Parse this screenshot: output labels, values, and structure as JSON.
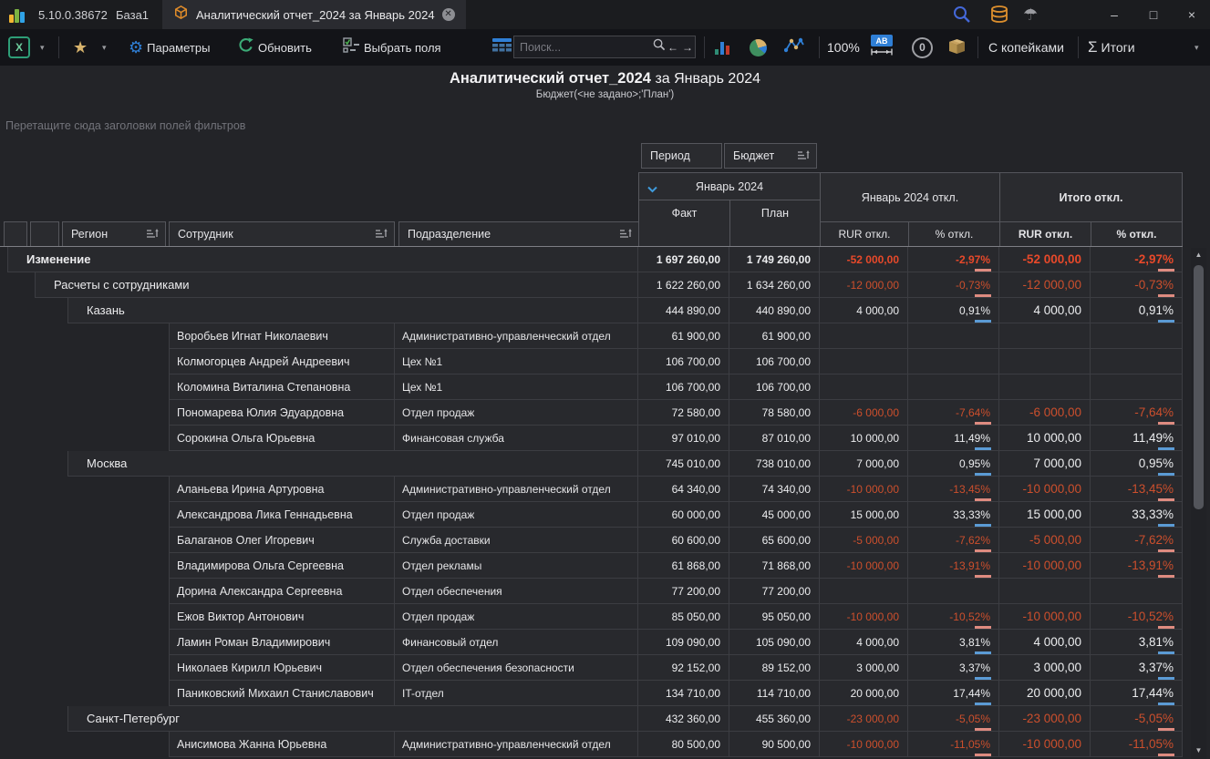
{
  "window": {
    "version": "5.10.0.38672",
    "base_name": "База1",
    "tab_title": "Аналитический отчет_2024 за Январь 2024",
    "minimize": "–",
    "maximize": "□",
    "close": "×"
  },
  "toolbar": {
    "excel_label": "X",
    "params_label": "Параметры",
    "refresh_label": "Обновить",
    "select_fields_label": "Выбрать поля",
    "search_placeholder": "Поиск...",
    "back_arrow": "←",
    "forward_arrow": "→",
    "zoom_level": "100%",
    "ab_label": "AB",
    "zero_label": "0",
    "kopecks_label": "С копейками",
    "sigma": "Σ",
    "totals_label": "Итоги"
  },
  "report": {
    "title": "Аналитический отчет_2024",
    "title_suffix": " за Январь 2024",
    "subtitle": "Бюджет(<не задано>;'План')"
  },
  "pivot": {
    "filter_hint": "Перетащите сюда заголовки полей фильтров",
    "column_fields": {
      "period": "Период",
      "budget": "Бюджет"
    },
    "col_groups": {
      "month": "Январь 2024",
      "month_dev": "Январь 2024 откл.",
      "total_dev": "Итого откл."
    },
    "sub_cols": {
      "fact": "Факт",
      "plan": "План",
      "rur_dev": "RUR откл.",
      "pct_dev": "% откл."
    },
    "row_fields": {
      "region": "Регион",
      "employee": "Сотрудник",
      "department": "Подразделение"
    },
    "rows": [
      {
        "kind": "group",
        "level": 0,
        "bold": true,
        "label": "Изменение",
        "variance": "neg",
        "values": [
          "1 697 260,00",
          "1 749 260,00",
          "-52 000,00",
          "-2,97%",
          "-52 000,00",
          "-2,97%"
        ]
      },
      {
        "kind": "group",
        "level": 1,
        "label": "Расчеты с сотрудниками",
        "variance": "neg",
        "values": [
          "1 622 260,00",
          "1 634 260,00",
          "-12 000,00",
          "-0,73%",
          "-12 000,00",
          "-0,73%"
        ]
      },
      {
        "kind": "group",
        "level": 2,
        "label": "Казань",
        "variance": "pos",
        "values": [
          "444 890,00",
          "440 890,00",
          "4 000,00",
          "0,91%",
          "4 000,00",
          "0,91%"
        ]
      },
      {
        "kind": "leaf",
        "employee": "Воробьев Игнат Николаевич",
        "dept": "Административно-управленческий отдел",
        "variance": "none",
        "values": [
          "61 900,00",
          "61 900,00",
          "",
          "",
          "",
          ""
        ]
      },
      {
        "kind": "leaf",
        "employee": "Колмогорцев Андрей Андреевич",
        "dept": "Цех №1",
        "variance": "none",
        "values": [
          "106 700,00",
          "106 700,00",
          "",
          "",
          "",
          ""
        ]
      },
      {
        "kind": "leaf",
        "employee": "Коломина Виталина Степановна",
        "dept": "Цех №1",
        "variance": "none",
        "values": [
          "106 700,00",
          "106 700,00",
          "",
          "",
          "",
          ""
        ]
      },
      {
        "kind": "leaf",
        "employee": "Пономарева Юлия Эдуардовна",
        "dept": "Отдел продаж",
        "variance": "neg",
        "values": [
          "72 580,00",
          "78 580,00",
          "-6 000,00",
          "-7,64%",
          "-6 000,00",
          "-7,64%"
        ]
      },
      {
        "kind": "leaf",
        "employee": "Сорокина Ольга Юрьевна",
        "dept": "Финансовая служба",
        "variance": "pos",
        "values": [
          "97 010,00",
          "87 010,00",
          "10 000,00",
          "11,49%",
          "10 000,00",
          "11,49%"
        ]
      },
      {
        "kind": "group",
        "level": 2,
        "label": "Москва",
        "variance": "pos",
        "values": [
          "745 010,00",
          "738 010,00",
          "7 000,00",
          "0,95%",
          "7 000,00",
          "0,95%"
        ]
      },
      {
        "kind": "leaf",
        "employee": "Аланьева Ирина Артуровна",
        "dept": "Административно-управленческий отдел",
        "variance": "neg",
        "values": [
          "64 340,00",
          "74 340,00",
          "-10 000,00",
          "-13,45%",
          "-10 000,00",
          "-13,45%"
        ]
      },
      {
        "kind": "leaf",
        "employee": "Александрова Лика Геннадьевна",
        "dept": "Отдел продаж",
        "variance": "pos",
        "values": [
          "60 000,00",
          "45 000,00",
          "15 000,00",
          "33,33%",
          "15 000,00",
          "33,33%"
        ]
      },
      {
        "kind": "leaf",
        "employee": "Балаганов Олег Игоревич",
        "dept": "Служба доставки",
        "variance": "neg",
        "values": [
          "60 600,00",
          "65 600,00",
          "-5 000,00",
          "-7,62%",
          "-5 000,00",
          "-7,62%"
        ]
      },
      {
        "kind": "leaf",
        "employee": "Владимирова Ольга Сергеевна",
        "dept": "Отдел рекламы",
        "variance": "neg",
        "values": [
          "61 868,00",
          "71 868,00",
          "-10 000,00",
          "-13,91%",
          "-10 000,00",
          "-13,91%"
        ]
      },
      {
        "kind": "leaf",
        "employee": "Дорина Александра Сергеевна",
        "dept": "Отдел обеспечения",
        "variance": "none",
        "values": [
          "77 200,00",
          "77 200,00",
          "",
          "",
          "",
          ""
        ]
      },
      {
        "kind": "leaf",
        "employee": "Ежов Виктор Антонович",
        "dept": "Отдел продаж",
        "variance": "neg",
        "values": [
          "85 050,00",
          "95 050,00",
          "-10 000,00",
          "-10,52%",
          "-10 000,00",
          "-10,52%"
        ]
      },
      {
        "kind": "leaf",
        "employee": "Ламин Роман Владимирович",
        "dept": "Финансовый отдел",
        "variance": "pos",
        "values": [
          "109 090,00",
          "105 090,00",
          "4 000,00",
          "3,81%",
          "4 000,00",
          "3,81%"
        ]
      },
      {
        "kind": "leaf",
        "employee": "Николаев Кирилл Юрьевич",
        "dept": "Отдел обеспечения безопасности",
        "variance": "pos",
        "values": [
          "92 152,00",
          "89 152,00",
          "3 000,00",
          "3,37%",
          "3 000,00",
          "3,37%"
        ]
      },
      {
        "kind": "leaf",
        "employee": "Паниковский Михаил Станиславович",
        "dept": "IT-отдел",
        "variance": "pos",
        "values": [
          "134 710,00",
          "114 710,00",
          "20 000,00",
          "17,44%",
          "20 000,00",
          "17,44%"
        ]
      },
      {
        "kind": "group",
        "level": 2,
        "label": "Санкт-Петербург",
        "variance": "neg",
        "values": [
          "432 360,00",
          "455 360,00",
          "-23 000,00",
          "-5,05%",
          "-23 000,00",
          "-5,05%"
        ]
      },
      {
        "kind": "leaf",
        "employee": "Анисимова Жанна Юрьевна",
        "dept": "Административно-управленческий отдел",
        "variance": "neg",
        "values": [
          "80 500,00",
          "90 500,00",
          "-10 000,00",
          "-11,05%",
          "-10 000,00",
          "-11,05%"
        ]
      }
    ]
  },
  "colors": {
    "negative_text": "#cc4f2d",
    "negative_text_strong": "#e8492a",
    "positive_indicator": "#5b9bd5",
    "negative_indicator": "#de8b80",
    "accent_blue": "#3f9bdc"
  }
}
